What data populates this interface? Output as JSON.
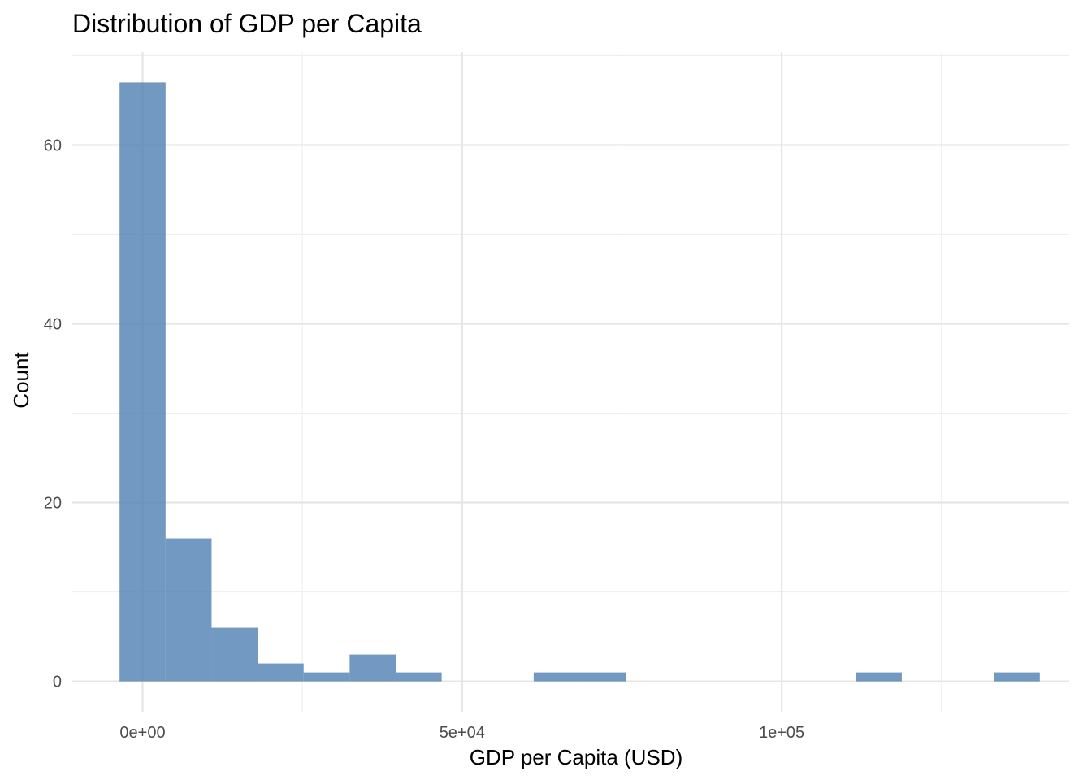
{
  "chart_data": {
    "type": "bar",
    "title": "Distribution of GDP per Capita",
    "xlabel": "GDP per Capita (USD)",
    "ylabel": "Count",
    "bin_width": 7200,
    "bins": [
      {
        "x0": -3600,
        "x1": 3600,
        "count": 67
      },
      {
        "x0": 3600,
        "x1": 10800,
        "count": 16
      },
      {
        "x0": 10800,
        "x1": 18000,
        "count": 6
      },
      {
        "x0": 18000,
        "x1": 25200,
        "count": 2
      },
      {
        "x0": 25200,
        "x1": 32400,
        "count": 1
      },
      {
        "x0": 32400,
        "x1": 39600,
        "count": 3
      },
      {
        "x0": 39600,
        "x1": 46800,
        "count": 1
      },
      {
        "x0": 46800,
        "x1": 54000,
        "count": 0
      },
      {
        "x0": 54000,
        "x1": 61200,
        "count": 0
      },
      {
        "x0": 61200,
        "x1": 68400,
        "count": 1
      },
      {
        "x0": 68400,
        "x1": 75600,
        "count": 1
      },
      {
        "x0": 75600,
        "x1": 82800,
        "count": 0
      },
      {
        "x0": 82800,
        "x1": 90000,
        "count": 0
      },
      {
        "x0": 90000,
        "x1": 97200,
        "count": 0
      },
      {
        "x0": 97200,
        "x1": 104400,
        "count": 0
      },
      {
        "x0": 104400,
        "x1": 111600,
        "count": 0
      },
      {
        "x0": 111600,
        "x1": 118800,
        "count": 1
      },
      {
        "x0": 118800,
        "x1": 126000,
        "count": 0
      },
      {
        "x0": 126000,
        "x1": 133200,
        "count": 0
      },
      {
        "x0": 133200,
        "x1": 140400,
        "count": 1
      }
    ],
    "xlim": [
      -11000,
      145000
    ],
    "ylim": [
      -3.4,
      70.4
    ],
    "x_major_ticks": [
      0,
      50000,
      100000
    ],
    "x_tick_labels": [
      "0e+00",
      "5e+04",
      "1e+05"
    ],
    "x_minor_ticks": [
      25000,
      75000,
      125000
    ],
    "y_major_ticks": [
      0,
      20,
      40,
      60
    ],
    "y_tick_labels": [
      "0",
      "20",
      "40",
      "60"
    ],
    "y_minor_ticks": [
      10,
      30,
      50,
      70
    ],
    "grid": true,
    "bar_color": "#4f7fb1",
    "bar_opacity": 0.8,
    "grid_major_color": "#e5e5e5",
    "grid_minor_color": "#efefef"
  }
}
